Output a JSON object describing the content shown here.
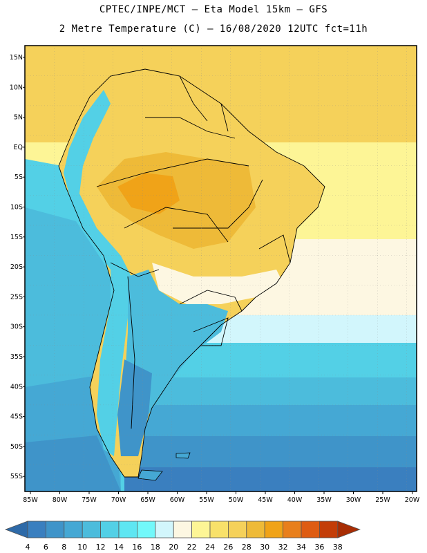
{
  "header": {
    "line1": "CPTEC/INPE/MCT –  Eta Model 15km – GFS",
    "line2": "2 Metre Temperature (C) – 16/08/2020 12UTC fct=11h"
  },
  "map": {
    "lat_labels": [
      "15N",
      "10N",
      "5N",
      "EQ",
      "5S",
      "10S",
      "15S",
      "20S",
      "25S",
      "30S",
      "35S",
      "40S",
      "45S",
      "50S",
      "55S"
    ],
    "lon_labels": [
      "85W",
      "80W",
      "75W",
      "70W",
      "65W",
      "60W",
      "55W",
      "50W",
      "45W",
      "40W",
      "35W",
      "30W",
      "25W",
      "20W"
    ],
    "region": "South America"
  },
  "colorbar": {
    "values": [
      "4",
      "6",
      "8",
      "10",
      "12",
      "14",
      "16",
      "18",
      "20",
      "22",
      "24",
      "26",
      "28",
      "30",
      "32",
      "34",
      "36",
      "38"
    ],
    "colors": [
      "#2e6aa8",
      "#3a7fbf",
      "#3f94c9",
      "#45a8d4",
      "#4cbcdc",
      "#53d0e6",
      "#5ee6f2",
      "#72f8fa",
      "#d2f6fc",
      "#fdf7e2",
      "#fdf596",
      "#f8e16a",
      "#f5d15a",
      "#eeba38",
      "#f0a318",
      "#e87f1c",
      "#de5c12",
      "#c33d08",
      "#a82d04"
    ]
  }
}
